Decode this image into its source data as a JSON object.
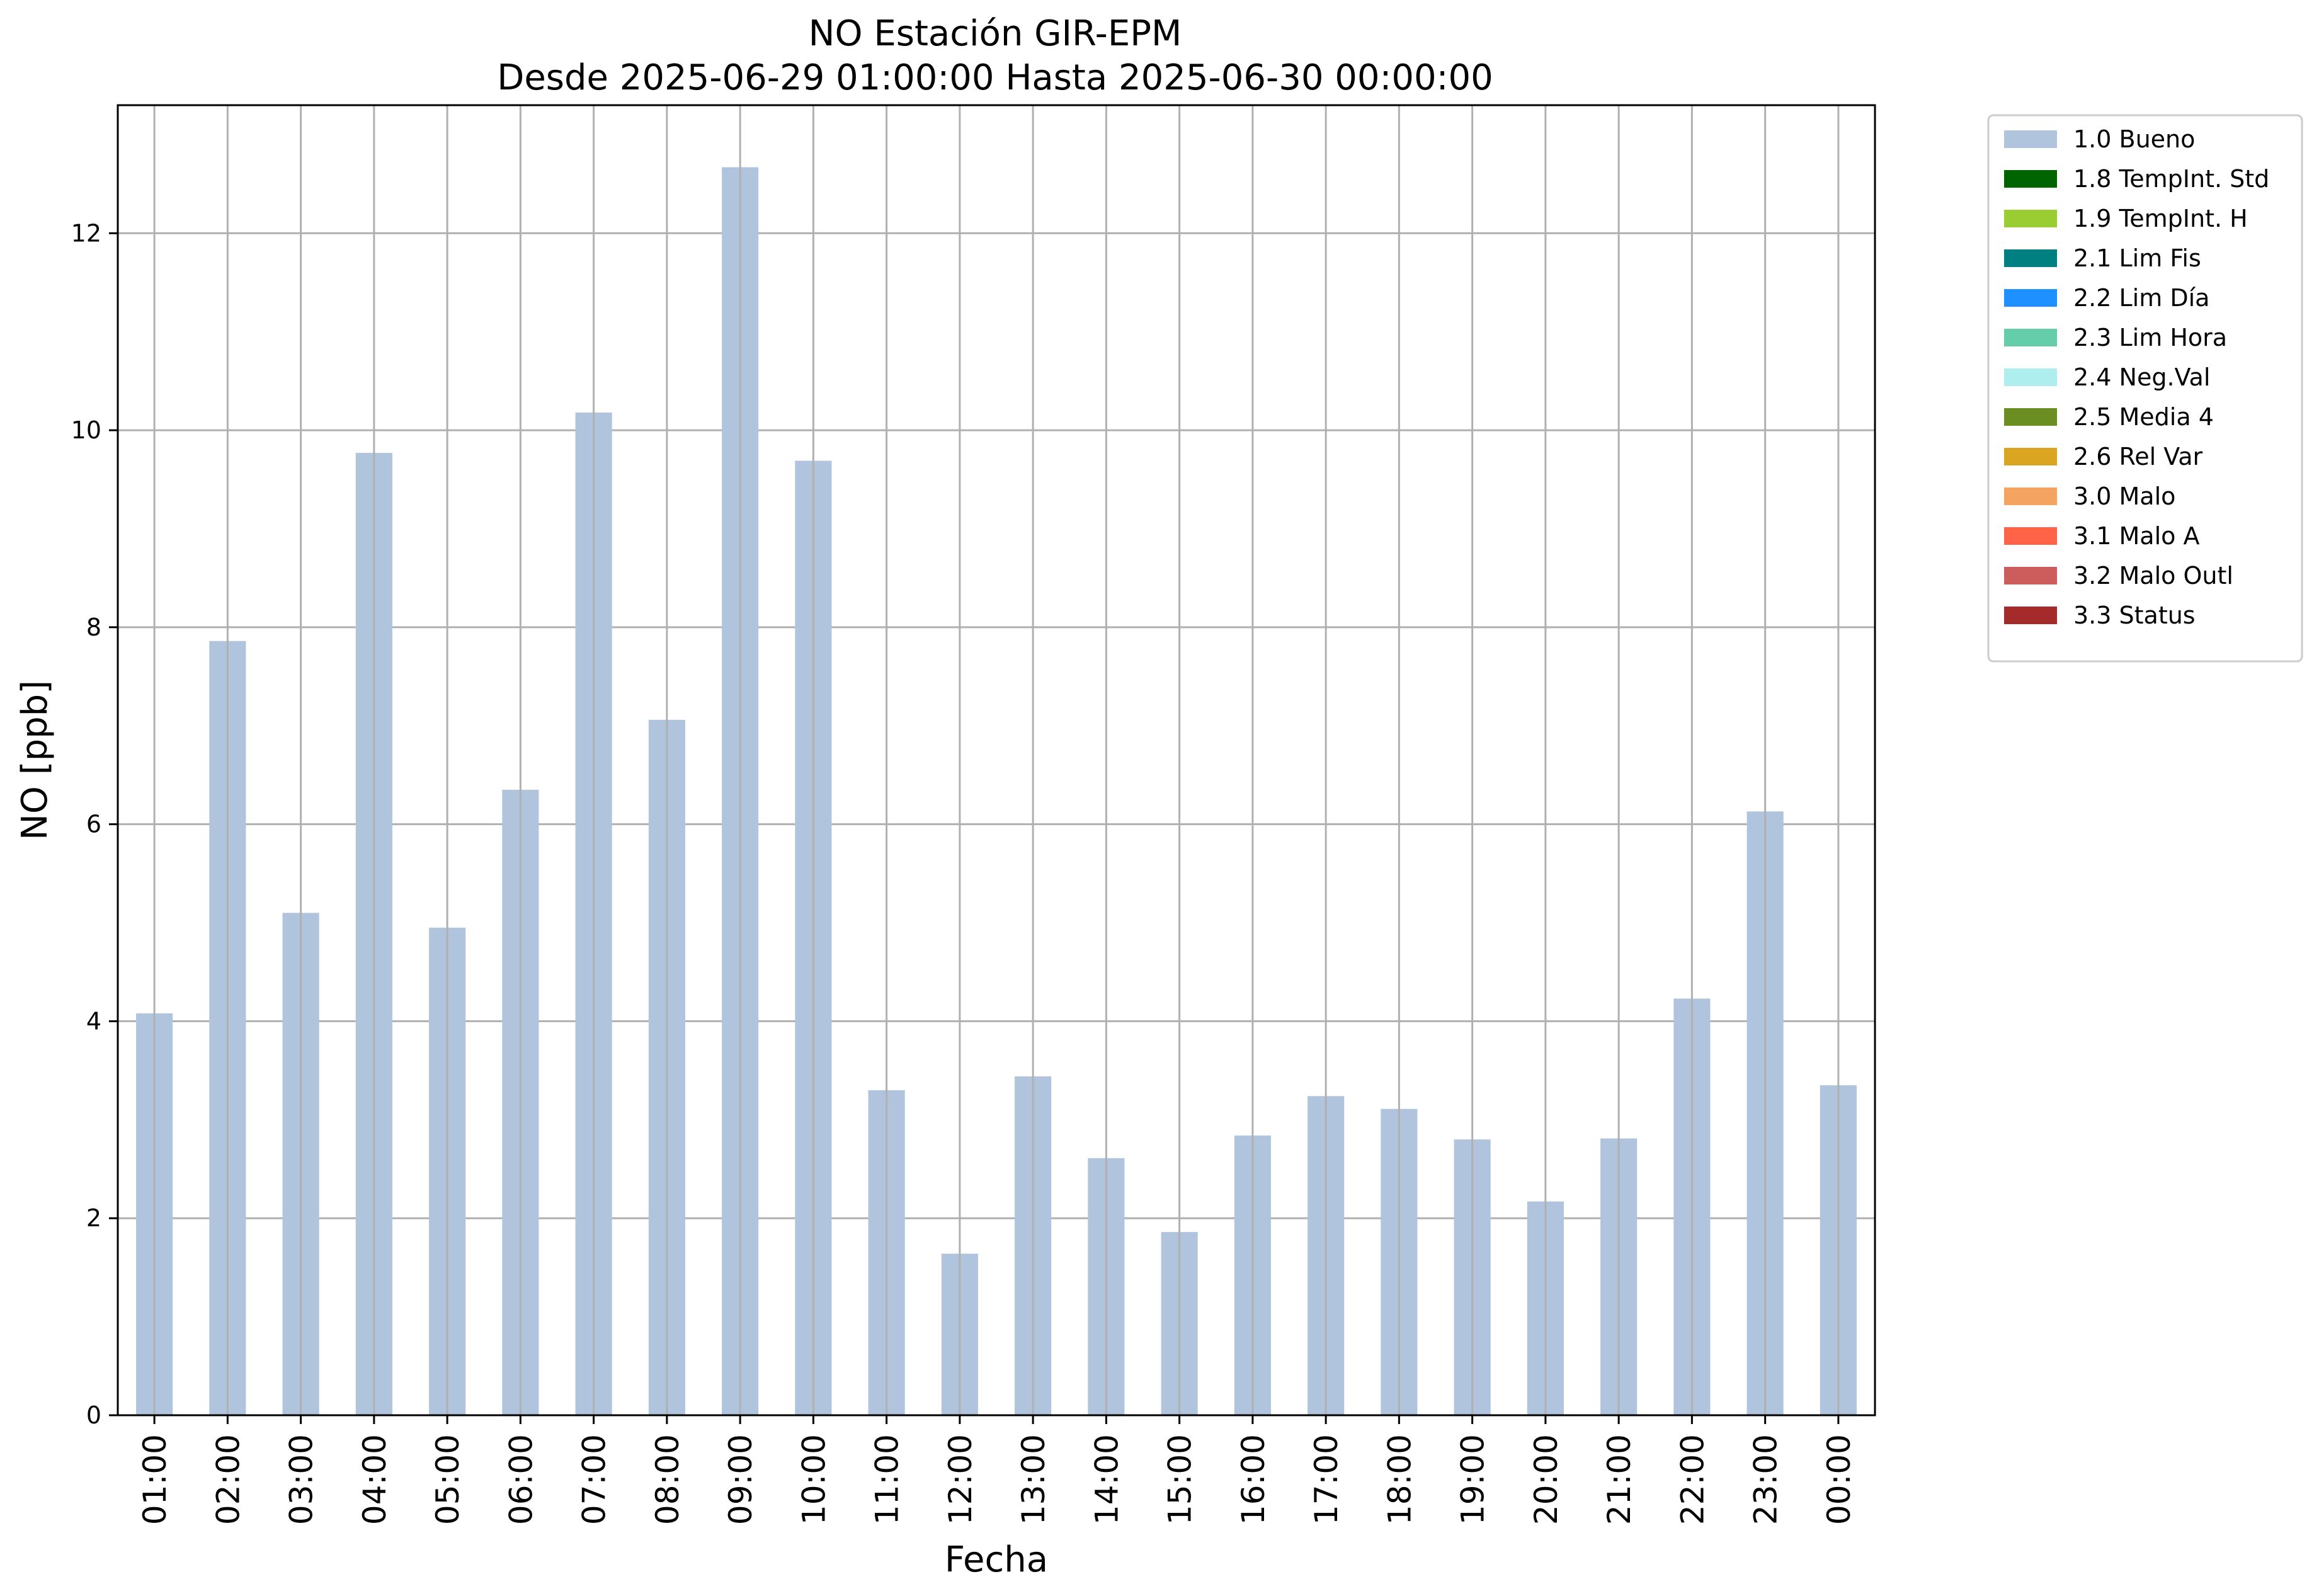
{
  "chart_data": {
    "type": "bar",
    "title": "NO Estación GIR-EPM",
    "subtitle": "Desde 2025-06-29 01:00:00 Hasta 2025-06-30 00:00:00",
    "xlabel": "Fecha",
    "ylabel": "NO [ppb]",
    "ylim": [
      0,
      13.3
    ],
    "yticks": [
      "0",
      "2",
      "4",
      "6",
      "8",
      "10",
      "12"
    ],
    "grid": true,
    "legend_position": "outside top-right",
    "categories": [
      "01:00",
      "02:00",
      "03:00",
      "04:00",
      "05:00",
      "06:00",
      "07:00",
      "08:00",
      "09:00",
      "10:00",
      "11:00",
      "12:00",
      "13:00",
      "14:00",
      "15:00",
      "16:00",
      "17:00",
      "18:00",
      "19:00",
      "20:00",
      "21:00",
      "22:00",
      "23:00",
      "00:00"
    ],
    "series": [
      {
        "name": "1.0 Bueno",
        "color": "#b0c4de",
        "values": [
          4.08,
          7.86,
          5.1,
          9.77,
          4.95,
          6.35,
          10.18,
          7.06,
          12.67,
          9.69,
          3.3,
          1.64,
          3.44,
          2.61,
          1.86,
          2.84,
          3.24,
          3.11,
          2.8,
          2.17,
          2.81,
          4.23,
          6.13,
          3.35
        ]
      }
    ],
    "legend": [
      {
        "label": "1.0 Bueno",
        "color": "#b0c4de"
      },
      {
        "label": "1.8 TempInt. Std",
        "color": "#006400"
      },
      {
        "label": "1.9 TempInt. H",
        "color": "#9acd32"
      },
      {
        "label": "2.1 Lim Fis",
        "color": "#008080"
      },
      {
        "label": "2.2 Lim Día",
        "color": "#1e90ff"
      },
      {
        "label": "2.3 Lim Hora",
        "color": "#66cdaa"
      },
      {
        "label": "2.4 Neg.Val",
        "color": "#afeeee"
      },
      {
        "label": "2.5 Media 4",
        "color": "#6b8e23"
      },
      {
        "label": "2.6 Rel Var",
        "color": "#daa520"
      },
      {
        "label": "3.0 Malo",
        "color": "#f4a460"
      },
      {
        "label": "3.1 Malo A",
        "color": "#ff6347"
      },
      {
        "label": "3.2 Malo Outl",
        "color": "#cd5c5c"
      },
      {
        "label": "3.3 Status",
        "color": "#a52a2a"
      }
    ]
  }
}
